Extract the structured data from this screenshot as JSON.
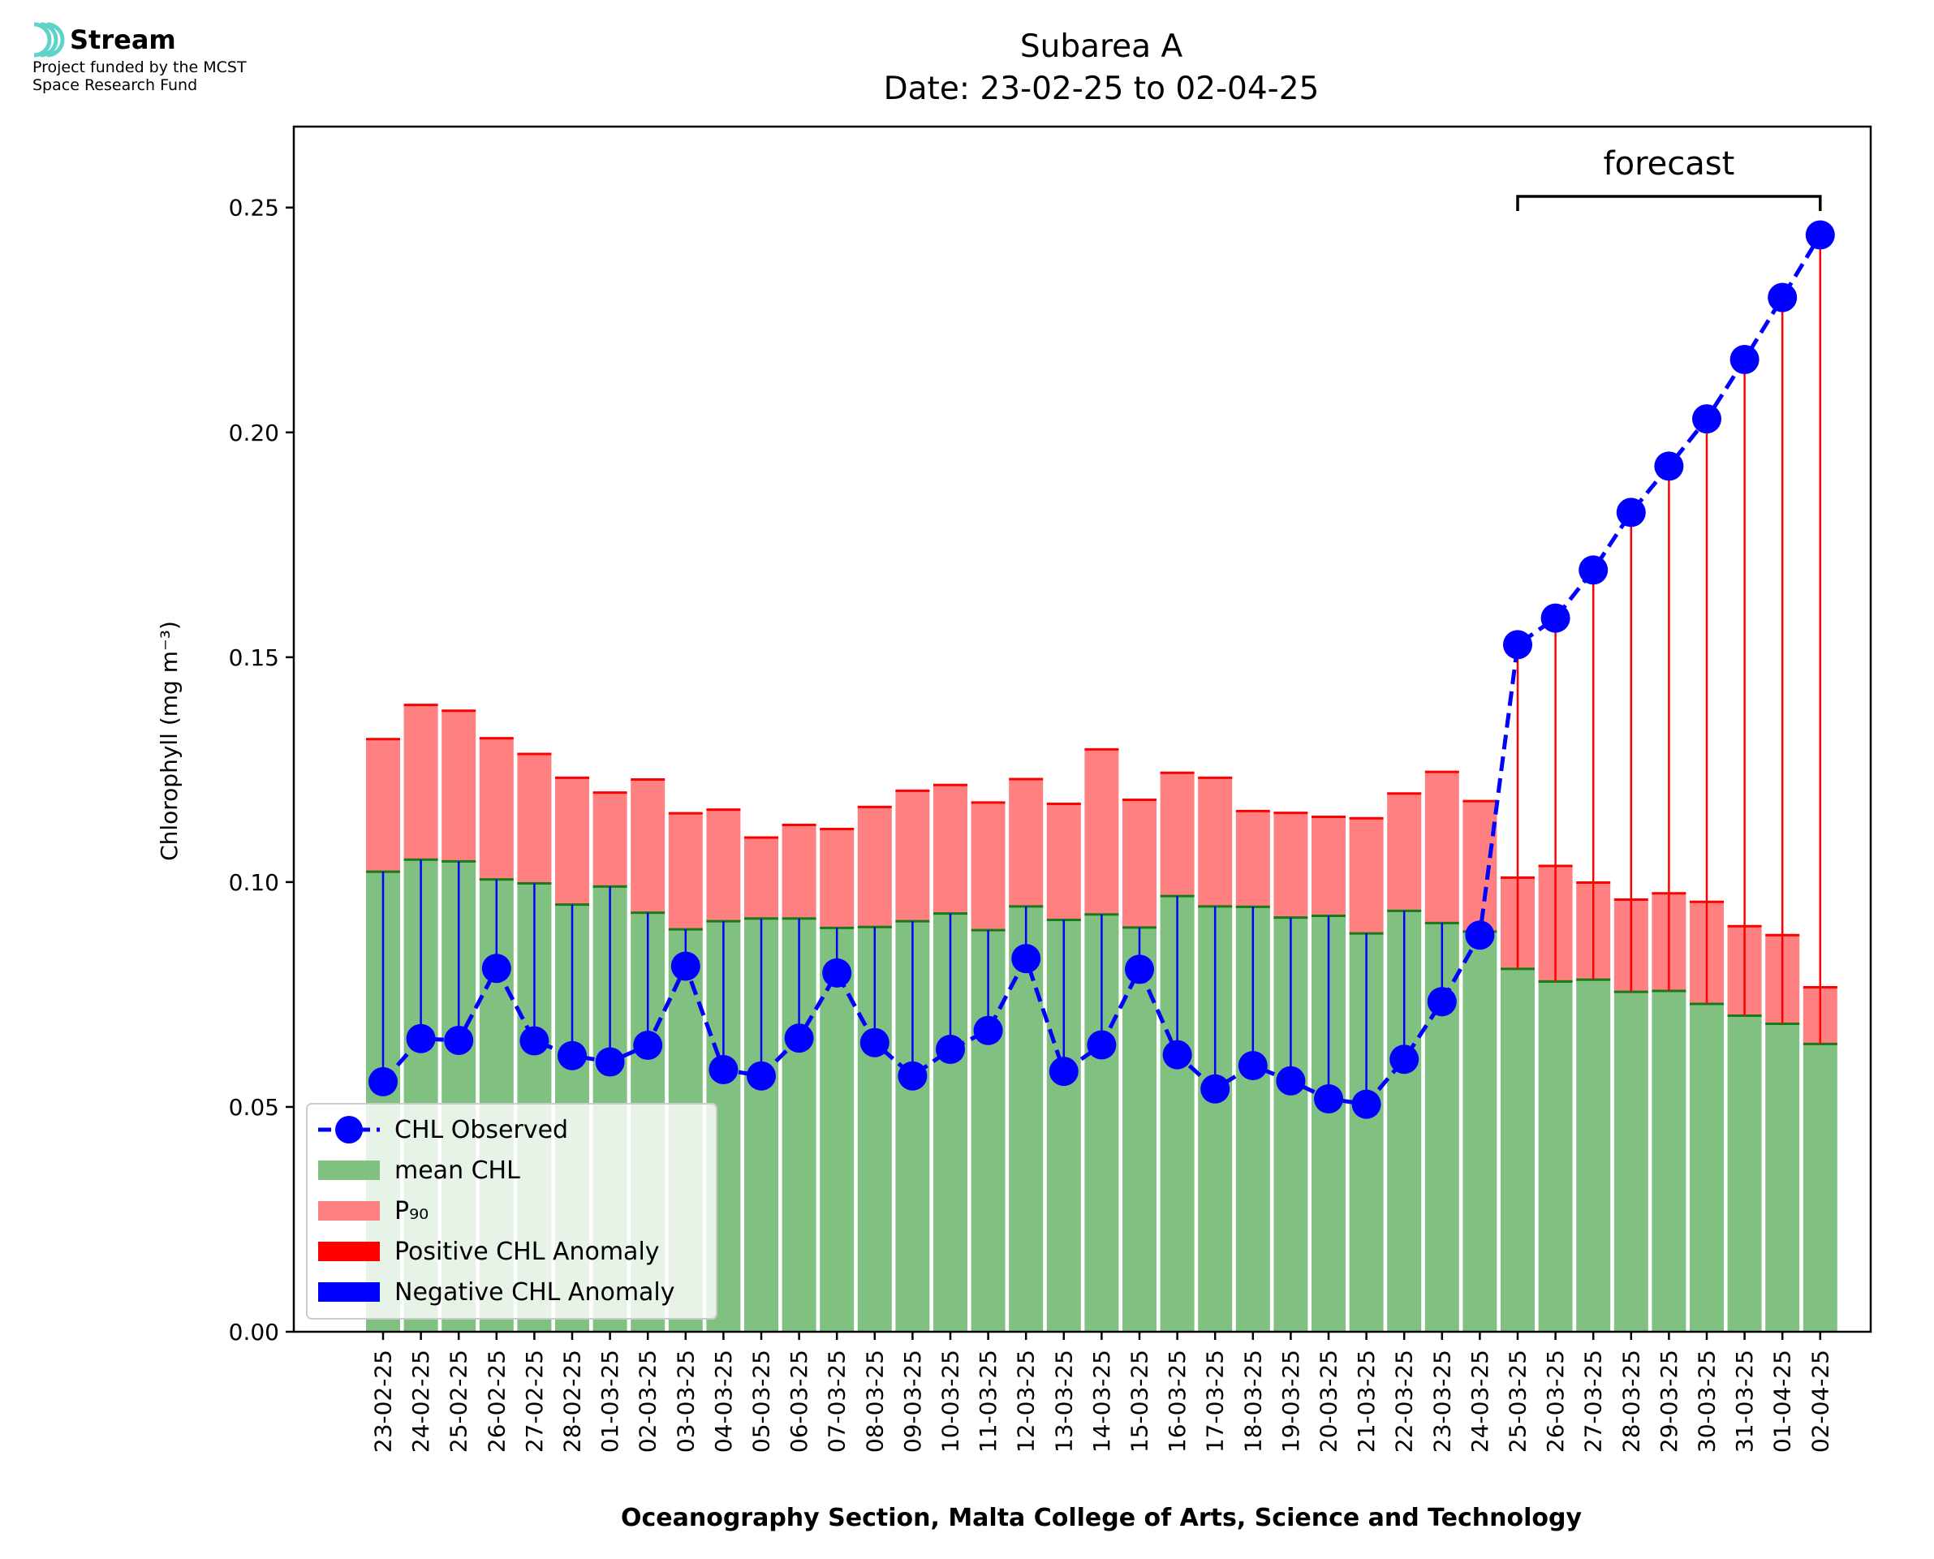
{
  "logo": {
    "name": "Stream",
    "line1": "Project funded by the MCST",
    "line2": "Space Research Fund",
    "color": "#5fd3c8"
  },
  "chart_data": {
    "type": "bar",
    "title": "Subarea A",
    "subtitle": "Date: 23-02-25 to 02-04-25",
    "xlabel": "Oceanography Section, Malta College of Arts, Science and Technology",
    "ylabel": "Chlorophyll (mg m⁻³)",
    "ylim": [
      0,
      0.268
    ],
    "yticks": [
      0.0,
      0.05,
      0.1,
      0.15,
      0.2,
      0.25
    ],
    "ytick_labels": [
      "0.00",
      "0.05",
      "0.10",
      "0.15",
      "0.20",
      "0.25"
    ],
    "grid": false,
    "legend_position": "lower-left",
    "forecast_label": "forecast",
    "forecast_range": [
      "25-03-25",
      "02-04-25"
    ],
    "categories": [
      "23-02-25",
      "24-02-25",
      "25-02-25",
      "26-02-25",
      "27-02-25",
      "28-02-25",
      "01-03-25",
      "02-03-25",
      "03-03-25",
      "04-03-25",
      "05-03-25",
      "06-03-25",
      "07-03-25",
      "08-03-25",
      "09-03-25",
      "10-03-25",
      "11-03-25",
      "12-03-25",
      "13-03-25",
      "14-03-25",
      "15-03-25",
      "16-03-25",
      "17-03-25",
      "18-03-25",
      "19-03-25",
      "20-03-25",
      "21-03-25",
      "22-03-25",
      "23-03-25",
      "24-03-25",
      "25-03-25",
      "26-03-25",
      "27-03-25",
      "28-03-25",
      "29-03-25",
      "30-03-25",
      "31-03-25",
      "01-04-25",
      "02-04-25"
    ],
    "series": [
      {
        "name": "CHL Observed",
        "kind": "line",
        "color": "#0000ff",
        "values": [
          0.0556,
          0.0652,
          0.0648,
          0.0808,
          0.0647,
          0.0614,
          0.06,
          0.0637,
          0.0813,
          0.0583,
          0.0569,
          0.0653,
          0.0798,
          0.0643,
          0.0569,
          0.0628,
          0.067,
          0.083,
          0.0579,
          0.0638,
          0.0806,
          0.0616,
          0.054,
          0.0592,
          0.0558,
          0.0518,
          0.0506,
          0.0606,
          0.0734,
          0.0882,
          0.1528,
          0.1587,
          0.1694,
          0.1822,
          0.1925,
          0.203,
          0.2162,
          0.23,
          0.2439
        ]
      },
      {
        "name": "mean CHL",
        "kind": "bar",
        "color": "#80c080",
        "values": [
          0.1023,
          0.105,
          0.1046,
          0.1006,
          0.0997,
          0.095,
          0.099,
          0.0932,
          0.0895,
          0.0913,
          0.0919,
          0.0919,
          0.0898,
          0.09,
          0.0913,
          0.093,
          0.0893,
          0.0946,
          0.0916,
          0.0928,
          0.0899,
          0.0969,
          0.0946,
          0.0945,
          0.0921,
          0.0925,
          0.0886,
          0.0936,
          0.0909,
          0.089,
          0.0807,
          0.0779,
          0.0783,
          0.0756,
          0.0758,
          0.0729,
          0.0703,
          0.0685,
          0.064
        ]
      },
      {
        "name": "P₉₀",
        "kind": "bar",
        "color": "#ff8080",
        "values": [
          0.1318,
          0.1394,
          0.1381,
          0.132,
          0.1285,
          0.1232,
          0.1199,
          0.1228,
          0.1153,
          0.1161,
          0.1099,
          0.1127,
          0.1118,
          0.1167,
          0.1203,
          0.1216,
          0.1177,
          0.1229,
          0.1174,
          0.1295,
          0.1183,
          0.1243,
          0.1232,
          0.1158,
          0.1154,
          0.1145,
          0.1142,
          0.1197,
          0.1245,
          0.118,
          0.101,
          0.1036,
          0.0999,
          0.0961,
          0.0975,
          0.0956,
          0.0902,
          0.0882,
          0.0766
        ]
      }
    ],
    "legend": [
      {
        "label": "CHL Observed",
        "kind": "line",
        "color": "#0000ff"
      },
      {
        "label": "mean CHL",
        "kind": "patch",
        "color": "#80c080"
      },
      {
        "label": "P₉₀",
        "kind": "patch",
        "color": "#ff8080"
      },
      {
        "label": "Positive CHL Anomaly",
        "kind": "patch",
        "color": "#ff0000"
      },
      {
        "label": "Negative CHL Anomaly",
        "kind": "patch",
        "color": "#0000ff"
      }
    ],
    "anomaly_colors": {
      "positive": "#ff0000",
      "negative": "#0000ff"
    }
  }
}
